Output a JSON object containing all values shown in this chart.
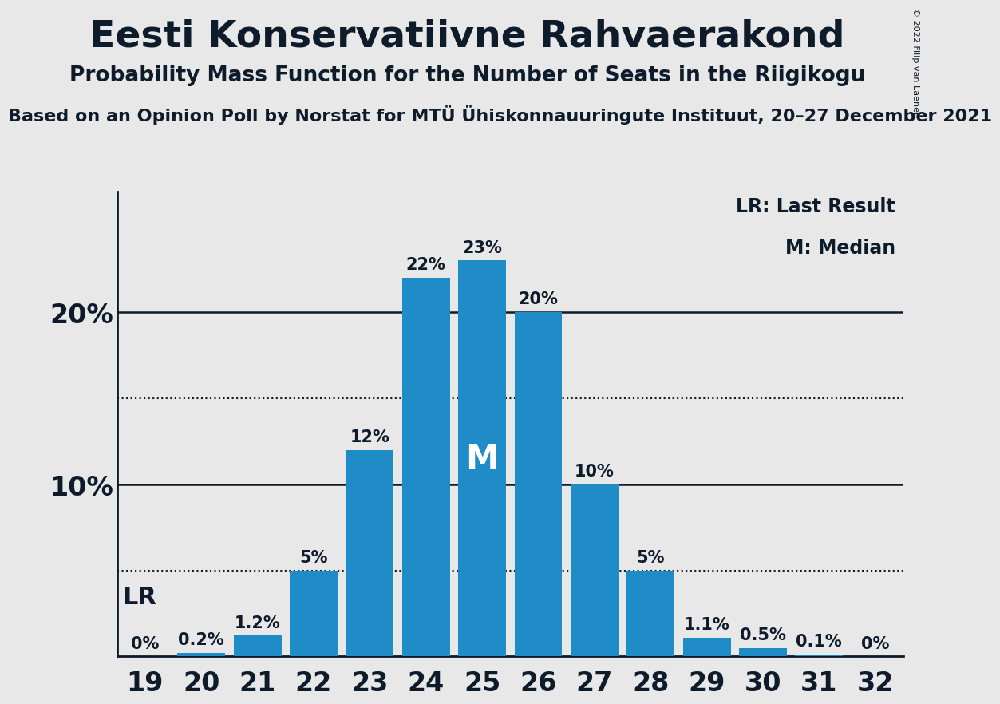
{
  "title": "Eesti Konservatiivne Rahvaerakond",
  "subtitle": "Probability Mass Function for the Number of Seats in the Riigikogu",
  "source_line": "Based on an Opinion Poll by Norstat for MTÜ Ühiskonnauuringute Instituut, 20–27 December 2021",
  "copyright": "© 2022 Filip van Laenen",
  "seats": [
    19,
    20,
    21,
    22,
    23,
    24,
    25,
    26,
    27,
    28,
    29,
    30,
    31,
    32
  ],
  "probabilities": [
    0.0,
    0.2,
    1.2,
    5.0,
    12.0,
    22.0,
    23.0,
    20.0,
    10.0,
    5.0,
    1.1,
    0.5,
    0.1,
    0.0
  ],
  "bar_color": "#1F8CC8",
  "background_color": "#E8E8E8",
  "plot_bg_color": "#F0F0F0",
  "text_color": "#0D1B2A",
  "yticks": [
    0,
    10,
    20
  ],
  "dotted_lines": [
    5,
    15
  ],
  "median_seat": 25,
  "last_result_seat": 19,
  "legend_lr": "LR: Last Result",
  "legend_m": "M: Median",
  "title_fontsize": 34,
  "subtitle_fontsize": 19,
  "source_fontsize": 16,
  "bar_label_fontsize": 15,
  "ytick_fontsize": 24,
  "xtick_fontsize": 24,
  "legend_fontsize": 17,
  "lr_fontsize": 22,
  "m_fontsize": 30
}
